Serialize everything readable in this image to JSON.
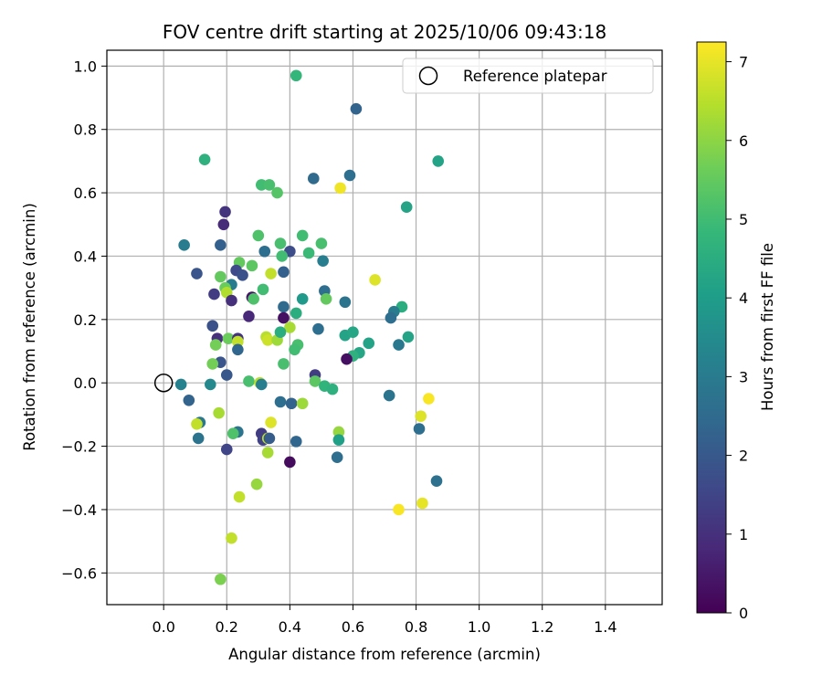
{
  "chart_data": {
    "type": "scatter",
    "title": "FOV centre drift starting at 2025/10/06 09:43:18",
    "xlabel": "Angular distance from reference (arcmin)",
    "ylabel": "Rotation from reference (arcmin)",
    "xlim": [
      -0.18,
      1.58
    ],
    "ylim": [
      -0.7,
      1.05
    ],
    "xticks": [
      0.0,
      0.2,
      0.4,
      0.6,
      0.8,
      1.0,
      1.2,
      1.4
    ],
    "xtick_labels": [
      "0.0",
      "0.2",
      "0.4",
      "0.6",
      "0.8",
      "1.0",
      "1.2",
      "1.4"
    ],
    "yticks": [
      -0.6,
      -0.4,
      -0.2,
      0.0,
      0.2,
      0.4,
      0.6,
      0.8,
      1.0
    ],
    "ytick_labels": [
      "−0.6",
      "−0.4",
      "−0.2",
      "0.0",
      "0.2",
      "0.4",
      "0.6",
      "0.8",
      "1.0"
    ],
    "grid": true,
    "legend": {
      "position": "top-right",
      "entries": [
        "Reference platepar"
      ]
    },
    "reference_point": {
      "x": 0.0,
      "y": 0.0,
      "label": "Reference platepar"
    },
    "colorbar": {
      "label": "Hours from first FF file",
      "colormap": "viridis",
      "range": [
        0,
        7.25
      ],
      "ticks": [
        0,
        1,
        2,
        3,
        4,
        5,
        6,
        7
      ],
      "tick_labels": [
        "0",
        "1",
        "2",
        "3",
        "4",
        "5",
        "6",
        "7"
      ]
    },
    "points": [
      {
        "x": 0.42,
        "y": 0.97,
        "c": 4.8
      },
      {
        "x": 0.61,
        "y": 0.865,
        "c": 2.3
      },
      {
        "x": 0.87,
        "y": 0.7,
        "c": 4.2
      },
      {
        "x": 0.13,
        "y": 0.705,
        "c": 4.6
      },
      {
        "x": 0.475,
        "y": 0.645,
        "c": 2.5
      },
      {
        "x": 0.59,
        "y": 0.655,
        "c": 2.6
      },
      {
        "x": 0.31,
        "y": 0.625,
        "c": 5.0
      },
      {
        "x": 0.335,
        "y": 0.625,
        "c": 5.1
      },
      {
        "x": 0.36,
        "y": 0.6,
        "c": 5.3
      },
      {
        "x": 0.56,
        "y": 0.615,
        "c": 7.1
      },
      {
        "x": 0.77,
        "y": 0.555,
        "c": 4.2
      },
      {
        "x": 0.195,
        "y": 0.54,
        "c": 1.1
      },
      {
        "x": 0.19,
        "y": 0.5,
        "c": 0.9
      },
      {
        "x": 0.065,
        "y": 0.435,
        "c": 3.0
      },
      {
        "x": 0.18,
        "y": 0.435,
        "c": 2.2
      },
      {
        "x": 0.3,
        "y": 0.465,
        "c": 5.2
      },
      {
        "x": 0.37,
        "y": 0.44,
        "c": 5.1
      },
      {
        "x": 0.44,
        "y": 0.465,
        "c": 5.0
      },
      {
        "x": 0.5,
        "y": 0.44,
        "c": 5.1
      },
      {
        "x": 0.32,
        "y": 0.415,
        "c": 2.6
      },
      {
        "x": 0.4,
        "y": 0.415,
        "c": 1.7
      },
      {
        "x": 0.46,
        "y": 0.41,
        "c": 4.9
      },
      {
        "x": 0.375,
        "y": 0.4,
        "c": 5.0
      },
      {
        "x": 0.24,
        "y": 0.38,
        "c": 5.5
      },
      {
        "x": 0.28,
        "y": 0.37,
        "c": 5.4
      },
      {
        "x": 0.23,
        "y": 0.355,
        "c": 1.6
      },
      {
        "x": 0.105,
        "y": 0.345,
        "c": 1.9
      },
      {
        "x": 0.25,
        "y": 0.34,
        "c": 1.8
      },
      {
        "x": 0.18,
        "y": 0.335,
        "c": 5.5
      },
      {
        "x": 0.34,
        "y": 0.345,
        "c": 6.6
      },
      {
        "x": 0.38,
        "y": 0.35,
        "c": 2.2
      },
      {
        "x": 0.505,
        "y": 0.385,
        "c": 3.1
      },
      {
        "x": 0.67,
        "y": 0.325,
        "c": 6.9
      },
      {
        "x": 0.215,
        "y": 0.31,
        "c": 3.0
      },
      {
        "x": 0.195,
        "y": 0.3,
        "c": 5.6
      },
      {
        "x": 0.16,
        "y": 0.28,
        "c": 1.3
      },
      {
        "x": 0.2,
        "y": 0.285,
        "c": 6.4
      },
      {
        "x": 0.215,
        "y": 0.26,
        "c": 1.0
      },
      {
        "x": 0.28,
        "y": 0.27,
        "c": 0.4
      },
      {
        "x": 0.285,
        "y": 0.265,
        "c": 5.2
      },
      {
        "x": 0.315,
        "y": 0.295,
        "c": 5.0
      },
      {
        "x": 0.51,
        "y": 0.29,
        "c": 2.6
      },
      {
        "x": 0.515,
        "y": 0.265,
        "c": 5.5
      },
      {
        "x": 0.44,
        "y": 0.265,
        "c": 3.9
      },
      {
        "x": 0.38,
        "y": 0.24,
        "c": 2.5
      },
      {
        "x": 0.575,
        "y": 0.255,
        "c": 2.8
      },
      {
        "x": 0.755,
        "y": 0.24,
        "c": 4.5
      },
      {
        "x": 0.73,
        "y": 0.225,
        "c": 3.0
      },
      {
        "x": 0.72,
        "y": 0.205,
        "c": 2.6
      },
      {
        "x": 0.27,
        "y": 0.21,
        "c": 0.8
      },
      {
        "x": 0.38,
        "y": 0.205,
        "c": 0.3
      },
      {
        "x": 0.42,
        "y": 0.22,
        "c": 4.5
      },
      {
        "x": 0.155,
        "y": 0.18,
        "c": 1.8
      },
      {
        "x": 0.4,
        "y": 0.175,
        "c": 6.3
      },
      {
        "x": 0.49,
        "y": 0.17,
        "c": 2.6
      },
      {
        "x": 0.575,
        "y": 0.15,
        "c": 4.2
      },
      {
        "x": 0.6,
        "y": 0.16,
        "c": 4.3
      },
      {
        "x": 0.775,
        "y": 0.145,
        "c": 4.2
      },
      {
        "x": 0.17,
        "y": 0.14,
        "c": 1.0
      },
      {
        "x": 0.205,
        "y": 0.14,
        "c": 5.6
      },
      {
        "x": 0.235,
        "y": 0.14,
        "c": 1.1
      },
      {
        "x": 0.325,
        "y": 0.145,
        "c": 6.5
      },
      {
        "x": 0.33,
        "y": 0.135,
        "c": 6.7
      },
      {
        "x": 0.36,
        "y": 0.135,
        "c": 6.2
      },
      {
        "x": 0.37,
        "y": 0.16,
        "c": 4.5
      },
      {
        "x": 0.425,
        "y": 0.12,
        "c": 5.1
      },
      {
        "x": 0.415,
        "y": 0.105,
        "c": 5.0
      },
      {
        "x": 0.165,
        "y": 0.12,
        "c": 5.7
      },
      {
        "x": 0.235,
        "y": 0.13,
        "c": 6.6
      },
      {
        "x": 0.235,
        "y": 0.105,
        "c": 2.4
      },
      {
        "x": 0.65,
        "y": 0.125,
        "c": 4.2
      },
      {
        "x": 0.745,
        "y": 0.12,
        "c": 2.9
      },
      {
        "x": 0.62,
        "y": 0.095,
        "c": 4.3
      },
      {
        "x": 0.6,
        "y": 0.085,
        "c": 4.6
      },
      {
        "x": 0.58,
        "y": 0.075,
        "c": 0.3
      },
      {
        "x": 0.18,
        "y": 0.065,
        "c": 1.9
      },
      {
        "x": 0.155,
        "y": 0.06,
        "c": 5.7
      },
      {
        "x": 0.38,
        "y": 0.06,
        "c": 5.1
      },
      {
        "x": 0.2,
        "y": 0.025,
        "c": 2.0
      },
      {
        "x": 0.48,
        "y": 0.025,
        "c": 1.3
      },
      {
        "x": 0.48,
        "y": 0.005,
        "c": 5.4
      },
      {
        "x": 0.51,
        "y": -0.01,
        "c": 4.7
      },
      {
        "x": 0.535,
        "y": -0.02,
        "c": 4.6
      },
      {
        "x": 0.27,
        "y": 0.005,
        "c": 5.1
      },
      {
        "x": 0.305,
        "y": 0.0,
        "c": 6.5
      },
      {
        "x": 0.055,
        "y": -0.005,
        "c": 3.2
      },
      {
        "x": 0.148,
        "y": -0.005,
        "c": 3.4
      },
      {
        "x": 0.31,
        "y": -0.005,
        "c": 3.1
      },
      {
        "x": 0.08,
        "y": -0.055,
        "c": 2.3
      },
      {
        "x": 0.37,
        "y": -0.06,
        "c": 2.6
      },
      {
        "x": 0.405,
        "y": -0.065,
        "c": 2.3
      },
      {
        "x": 0.44,
        "y": -0.065,
        "c": 6.2
      },
      {
        "x": 0.715,
        "y": -0.04,
        "c": 2.8
      },
      {
        "x": 0.84,
        "y": -0.05,
        "c": 7.2
      },
      {
        "x": 0.175,
        "y": -0.095,
        "c": 6.3
      },
      {
        "x": 0.815,
        "y": -0.105,
        "c": 6.9
      },
      {
        "x": 0.115,
        "y": -0.125,
        "c": 2.9
      },
      {
        "x": 0.105,
        "y": -0.13,
        "c": 6.6
      },
      {
        "x": 0.34,
        "y": -0.125,
        "c": 6.9
      },
      {
        "x": 0.235,
        "y": -0.155,
        "c": 2.8
      },
      {
        "x": 0.22,
        "y": -0.16,
        "c": 5.2
      },
      {
        "x": 0.555,
        "y": -0.155,
        "c": 6.1
      },
      {
        "x": 0.81,
        "y": -0.145,
        "c": 2.6
      },
      {
        "x": 0.11,
        "y": -0.175,
        "c": 2.8
      },
      {
        "x": 0.31,
        "y": -0.16,
        "c": 1.3
      },
      {
        "x": 0.315,
        "y": -0.18,
        "c": 1.4
      },
      {
        "x": 0.33,
        "y": -0.175,
        "c": 6.5
      },
      {
        "x": 0.335,
        "y": -0.175,
        "c": 2.1
      },
      {
        "x": 0.42,
        "y": -0.185,
        "c": 2.4
      },
      {
        "x": 0.555,
        "y": -0.18,
        "c": 4.1
      },
      {
        "x": 0.2,
        "y": -0.21,
        "c": 1.5
      },
      {
        "x": 0.33,
        "y": -0.22,
        "c": 6.3
      },
      {
        "x": 0.55,
        "y": -0.235,
        "c": 2.6
      },
      {
        "x": 0.4,
        "y": -0.25,
        "c": 0.2
      },
      {
        "x": 0.865,
        "y": -0.31,
        "c": 2.7
      },
      {
        "x": 0.295,
        "y": -0.32,
        "c": 6.1
      },
      {
        "x": 0.24,
        "y": -0.36,
        "c": 6.6
      },
      {
        "x": 0.82,
        "y": -0.38,
        "c": 7.0
      },
      {
        "x": 0.745,
        "y": -0.4,
        "c": 7.2
      },
      {
        "x": 0.215,
        "y": -0.49,
        "c": 6.6
      },
      {
        "x": 0.18,
        "y": -0.62,
        "c": 5.8
      }
    ]
  }
}
